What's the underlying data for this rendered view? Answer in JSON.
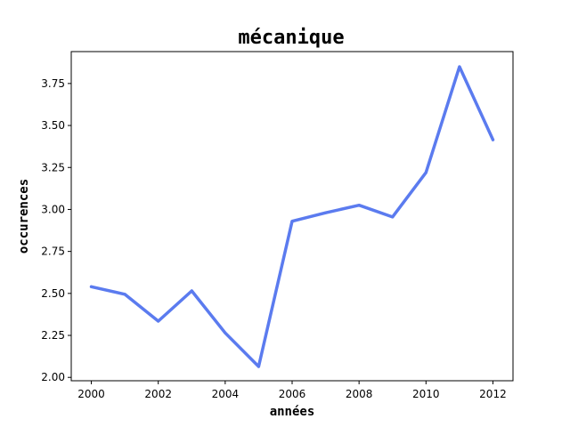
{
  "chart_data": {
    "type": "line",
    "title": "mécanique",
    "xlabel": "années",
    "ylabel": "occurences",
    "x": [
      2000,
      2001,
      2002,
      2003,
      2004,
      2005,
      2006,
      2007,
      2008,
      2009,
      2010,
      2011,
      2012
    ],
    "series": [
      {
        "values": [
          2.54,
          2.495,
          2.335,
          2.515,
          2.265,
          2.065,
          2.93,
          2.98,
          3.025,
          2.955,
          3.22,
          3.85,
          3.415
        ],
        "color": "#5b7bef"
      }
    ],
    "xlim": [
      1999.4,
      2012.6
    ],
    "ylim": [
      1.98,
      3.94
    ],
    "xticks": [
      2000,
      2002,
      2004,
      2006,
      2008,
      2010,
      2012
    ],
    "xtick_labels": [
      "2000",
      "2002",
      "2004",
      "2006",
      "2008",
      "2010",
      "2012"
    ],
    "yticks": [
      2.0,
      2.25,
      2.5,
      2.75,
      3.0,
      3.25,
      3.5,
      3.75
    ],
    "ytick_labels": [
      "2.00",
      "2.25",
      "2.50",
      "2.75",
      "3.00",
      "3.25",
      "3.50",
      "3.75"
    ],
    "grid": false,
    "legend": "none"
  }
}
